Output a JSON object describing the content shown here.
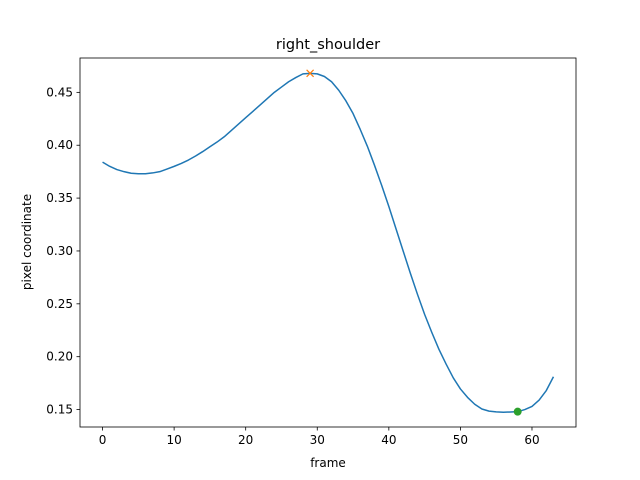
{
  "chart_data": {
    "type": "line",
    "title": "right_shoulder",
    "xlabel": "frame",
    "ylabel": "pixel coordinate",
    "xlim": [
      -3.15,
      66.15
    ],
    "ylim": [
      0.1335,
      0.4825
    ],
    "xticks": [
      0,
      10,
      20,
      30,
      40,
      50,
      60
    ],
    "yticks": [
      0.15,
      0.2,
      0.25,
      0.3,
      0.35,
      0.4,
      0.45
    ],
    "ytick_labels": [
      "0.15",
      "0.20",
      "0.25",
      "0.30",
      "0.35",
      "0.40",
      "0.45"
    ],
    "grid": false,
    "series": [
      {
        "color": "#1f77b4",
        "x": [
          0,
          1,
          2,
          3,
          4,
          5,
          6,
          7,
          8,
          9,
          10,
          11,
          12,
          13,
          14,
          15,
          16,
          17,
          18,
          19,
          20,
          21,
          22,
          23,
          24,
          25,
          26,
          27,
          28,
          29,
          30,
          31,
          32,
          33,
          34,
          35,
          36,
          37,
          38,
          39,
          40,
          41,
          42,
          43,
          44,
          45,
          46,
          47,
          48,
          49,
          50,
          51,
          52,
          53,
          54,
          55,
          56,
          57,
          58,
          59,
          60,
          61,
          62,
          63
        ],
        "y": [
          0.384,
          0.38,
          0.377,
          0.375,
          0.3735,
          0.373,
          0.373,
          0.3738,
          0.375,
          0.3775,
          0.38,
          0.3828,
          0.386,
          0.3898,
          0.394,
          0.3985,
          0.403,
          0.408,
          0.414,
          0.42,
          0.426,
          0.432,
          0.438,
          0.444,
          0.45,
          0.455,
          0.46,
          0.464,
          0.4675,
          0.468,
          0.4675,
          0.465,
          0.46,
          0.452,
          0.442,
          0.43,
          0.415,
          0.399,
          0.381,
          0.362,
          0.342,
          0.321,
          0.3,
          0.279,
          0.259,
          0.24,
          0.223,
          0.207,
          0.193,
          0.18,
          0.1695,
          0.1615,
          0.155,
          0.1505,
          0.1485,
          0.1478,
          0.1475,
          0.1477,
          0.148,
          0.15,
          0.153,
          0.159,
          0.168,
          0.181
        ]
      }
    ],
    "markers": [
      {
        "symbol": "x",
        "x": 29,
        "y": 0.468,
        "color": "#ff7f0e"
      },
      {
        "symbol": "circle",
        "x": 58,
        "y": 0.148,
        "color": "#2ca02c"
      }
    ]
  }
}
